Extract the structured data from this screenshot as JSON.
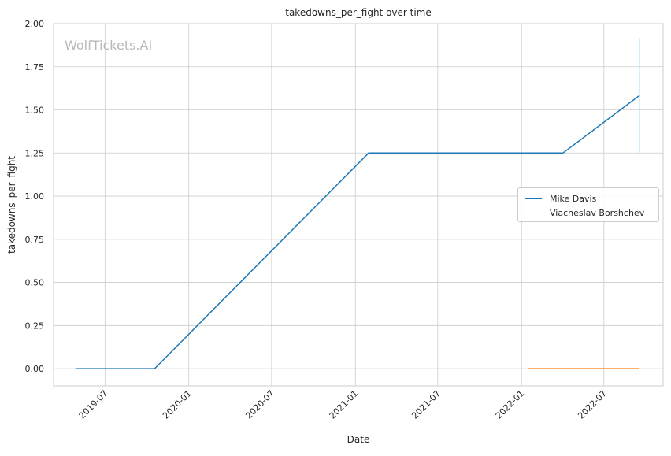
{
  "chart_data": {
    "type": "line",
    "title": "takedowns_per_fight over time",
    "xlabel": "Date",
    "ylabel": "takedowns_per_fight",
    "x_ticks": [
      "2019-07",
      "2020-01",
      "2020-07",
      "2021-01",
      "2021-07",
      "2022-01",
      "2022-07"
    ],
    "y_ticks": [
      "0.00",
      "0.25",
      "0.50",
      "0.75",
      "1.00",
      "1.25",
      "1.50",
      "1.75",
      "2.00"
    ],
    "ylim": [
      -0.1,
      2.0
    ],
    "xlim": [
      "2019-03-10",
      "2022-11-08"
    ],
    "grid": true,
    "legend_position": "center-right",
    "series": [
      {
        "name": "Mike Davis",
        "color": "#1f77b4",
        "x": [
          "2019-04-27",
          "2019-10-18",
          "2021-01-30",
          "2022-04-02",
          "2022-09-17"
        ],
        "y": [
          0.0,
          0.0,
          1.25,
          1.25,
          1.583
        ]
      },
      {
        "name": "Viacheslav Borshchev",
        "color": "#ff7f0e",
        "x": [
          "2022-01-15",
          "2022-09-17"
        ],
        "y": [
          0.0,
          0.0
        ]
      }
    ],
    "annotations": [
      {
        "type": "vertical-range",
        "x": "2022-09-17",
        "y_from": 1.25,
        "y_to": 1.917,
        "color": "#a8d8ea"
      }
    ]
  },
  "watermark": "WolfTickets.AI"
}
